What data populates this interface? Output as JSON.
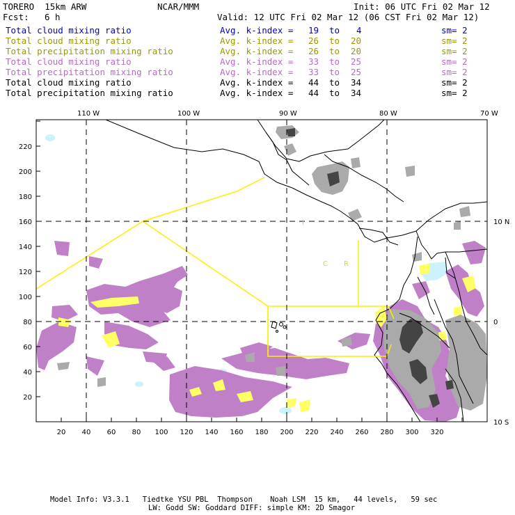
{
  "header": {
    "model": "TORERO  15km ARW",
    "center": "NCAR/MMM",
    "init": "Init: 06 UTC Fri 02 Mar 12",
    "fcst_label": "Fcst:",
    "fcst_value": "6 h",
    "valid": "Valid: 12 UTC Fri 02 Mar 12 (06 CST Fri 02 Mar 12)"
  },
  "fields": [
    {
      "name": "Total cloud mixing ratio",
      "index": "Avg. k-index =",
      "from": "19",
      "to_word": "to",
      "to": "4",
      "sm": "sm= 2",
      "color": "#0000cc"
    },
    {
      "name": "Total cloud mixing ratio",
      "index": "Avg. k-index =",
      "from": "26",
      "to_word": "to",
      "to": "20",
      "sm": "sm= 2",
      "color": "#999900"
    },
    {
      "name": "Total precipitation mixing ratio",
      "index": "Avg. k-index =",
      "from": "26",
      "to_word": "to",
      "to": "20",
      "sm": "sm= 2",
      "color": "#999900"
    },
    {
      "name": "Total cloud mixing ratio",
      "index": "Avg. k-index =",
      "from": "33",
      "to_word": "to",
      "to": "25",
      "sm": "sm= 2",
      "color": "#bb66cc"
    },
    {
      "name": "Total precipitation mixing ratio",
      "index": "Avg. k-index =",
      "from": "33",
      "to_word": "to",
      "to": "25",
      "sm": "sm= 2",
      "color": "#bb66cc"
    },
    {
      "name": "Total cloud mixing ratio",
      "index": "Avg. k-index =",
      "from": "44",
      "to_word": "to",
      "to": "34",
      "sm": "sm= 2",
      "color": "#000000"
    },
    {
      "name": "Total precipitation mixing ratio",
      "index": "Avg. k-index =",
      "from": "44",
      "to_word": "to",
      "to": "34",
      "sm": "sm= 2",
      "color": "#000000"
    }
  ],
  "map": {
    "top_lon_labels": [
      "110 W",
      "100 W",
      "90 W",
      "80 W",
      "70 W"
    ],
    "right_lat_labels": [
      "10 N",
      "0",
      "10 S"
    ],
    "x_ticks": [
      "20",
      "40",
      "60",
      "80",
      "100",
      "120",
      "140",
      "160",
      "180",
      "200",
      "220",
      "240",
      "260",
      "280",
      "300",
      "320"
    ],
    "y_ticks": [
      "20",
      "40",
      "60",
      "80",
      "100",
      "120",
      "140",
      "160",
      "180",
      "200",
      "220"
    ],
    "text_marks": [
      "I",
      "C",
      "R"
    ],
    "colors": {
      "purple": "#c080c8",
      "yellow": "#ffff66",
      "gray": "#aaaaaa",
      "dark_gray": "#444444",
      "cyan": "#ccf2ff",
      "outline": "#ffff00"
    }
  },
  "footer": {
    "line1": "Model Info: V3.3.1   Tiedtke YSU PBL  Thompson    Noah LSM  15 km,   44 levels,   59 sec",
    "line2": "LW: Godd SW: Goddard DIFF: simple KM: 2D Smagor"
  }
}
